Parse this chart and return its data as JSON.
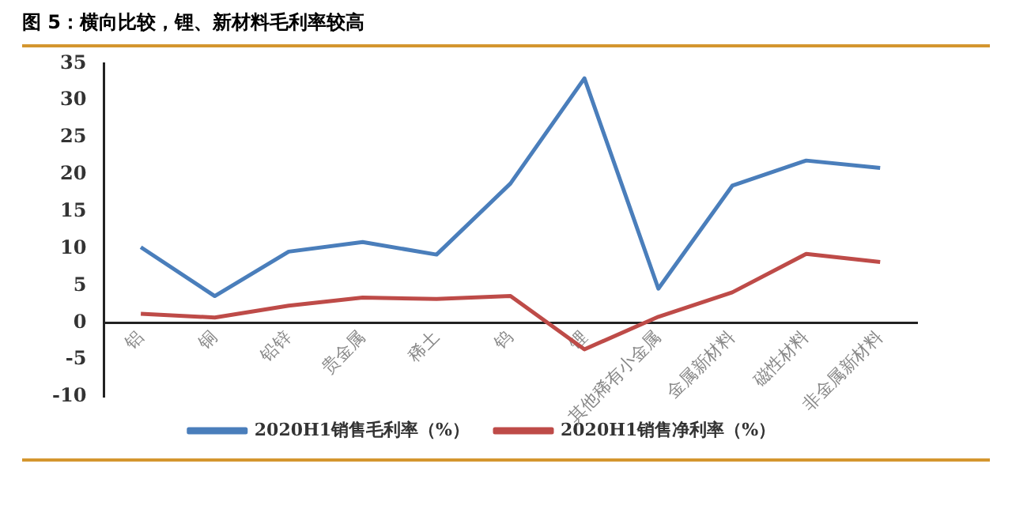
{
  "chart_data": {
    "type": "line",
    "title": "图 5：横向比较，锂、新材料毛利率较高",
    "categories": [
      "铝",
      "铜",
      "铅锌",
      "贵金属",
      "稀土",
      "钨",
      "锂",
      "其他稀有小金属",
      "金属新材料",
      "磁性材料",
      "非金属新材料"
    ],
    "series": [
      {
        "name": "2020H1销售毛利率（%）",
        "color": "#4a7ebb",
        "values": [
          10.2,
          3.6,
          9.6,
          10.9,
          9.2,
          18.8,
          33,
          4.6,
          18.5,
          21.9,
          20.9
        ]
      },
      {
        "name": "2020H1销售净利率（%）",
        "color": "#be4b48",
        "values": [
          1.2,
          0.7,
          2.3,
          3.4,
          3.2,
          3.6,
          -3.6,
          0.8,
          4.1,
          9.3,
          8.2
        ]
      }
    ],
    "ylim": [
      -10,
      35
    ],
    "yticks": [
      -10,
      -5,
      0,
      5,
      10,
      15,
      20,
      25,
      30,
      35
    ],
    "grid": false,
    "legend": "bottom",
    "marker": "none",
    "line_style": "solid"
  }
}
